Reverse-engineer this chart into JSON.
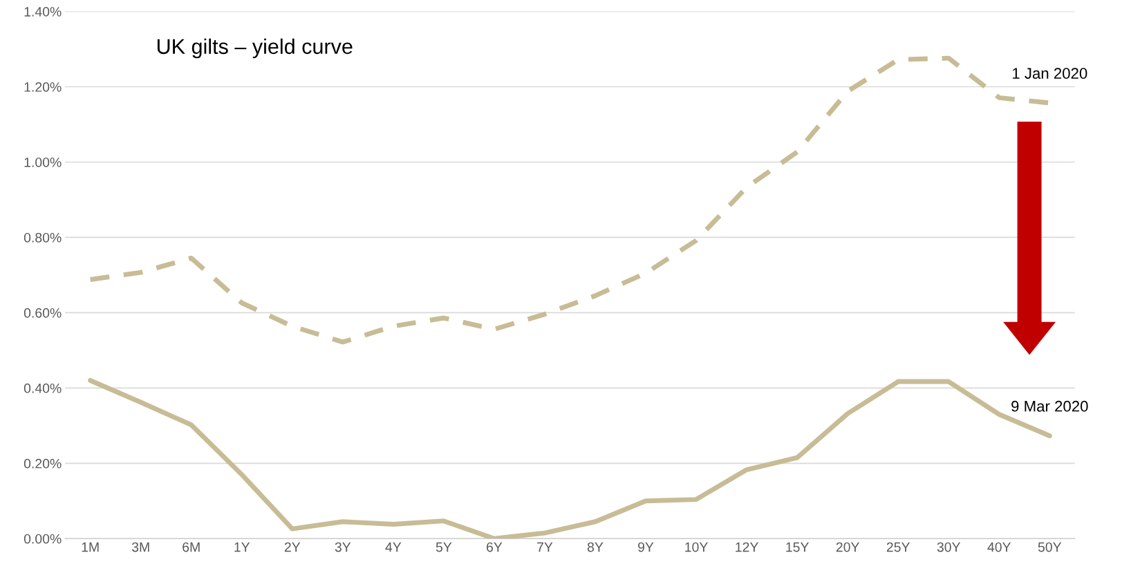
{
  "chart_data": {
    "type": "line",
    "title": "UK gilts – yield curve",
    "categories": [
      "1M",
      "3M",
      "6M",
      "1Y",
      "2Y",
      "3Y",
      "4Y",
      "5Y",
      "6Y",
      "7Y",
      "8Y",
      "9Y",
      "10Y",
      "12Y",
      "15Y",
      "20Y",
      "25Y",
      "30Y",
      "40Y",
      "50Y"
    ],
    "series": [
      {
        "name": "1 Jan 2020",
        "color": "#c8bc96",
        "line_style": "dashed",
        "values": [
          0.688,
          0.707,
          0.745,
          0.626,
          0.564,
          0.522,
          0.564,
          0.586,
          0.556,
          0.596,
          0.645,
          0.705,
          0.792,
          0.933,
          1.027,
          1.188,
          1.272,
          1.276,
          1.171,
          1.157
        ]
      },
      {
        "name": "9 Mar 2020",
        "color": "#c8bc96",
        "line_style": "solid",
        "values": [
          0.42,
          0.362,
          0.302,
          0.17,
          0.026,
          0.045,
          0.038,
          0.047,
          0.0,
          0.015,
          0.045,
          0.1,
          0.104,
          0.183,
          0.215,
          0.332,
          0.417,
          0.417,
          0.33,
          0.273
        ]
      }
    ],
    "ylim": [
      0,
      1.4
    ],
    "yticks": [
      {
        "value": 0,
        "label": "0.00%"
      },
      {
        "value": 0.2,
        "label": "0.20%"
      },
      {
        "value": 0.4,
        "label": "0.40%"
      },
      {
        "value": 0.6,
        "label": "0.60%"
      },
      {
        "value": 0.8,
        "label": "0.80%"
      },
      {
        "value": 1.0,
        "label": "1.00%"
      },
      {
        "value": 1.2,
        "label": "1.20%"
      },
      {
        "value": 1.4,
        "label": "1.40%"
      }
    ],
    "grid": "y",
    "legend": false,
    "marker": "none"
  }
}
